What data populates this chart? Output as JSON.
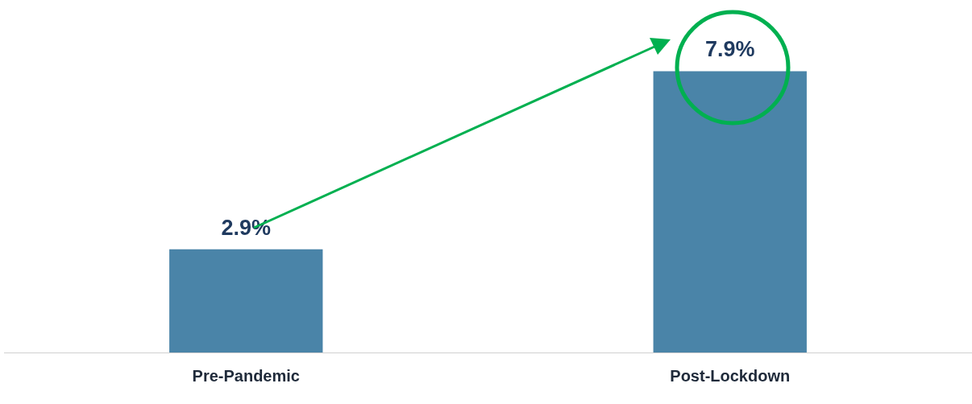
{
  "chart_data": {
    "type": "bar",
    "categories": [
      "Pre-Pandemic",
      "Post-Lockdown"
    ],
    "values": [
      2.9,
      7.9
    ],
    "value_labels": [
      "2.9%",
      "7.9%"
    ],
    "color": "#4a84a8",
    "grid": false,
    "legend": false,
    "tick_labels": "x"
  }
}
